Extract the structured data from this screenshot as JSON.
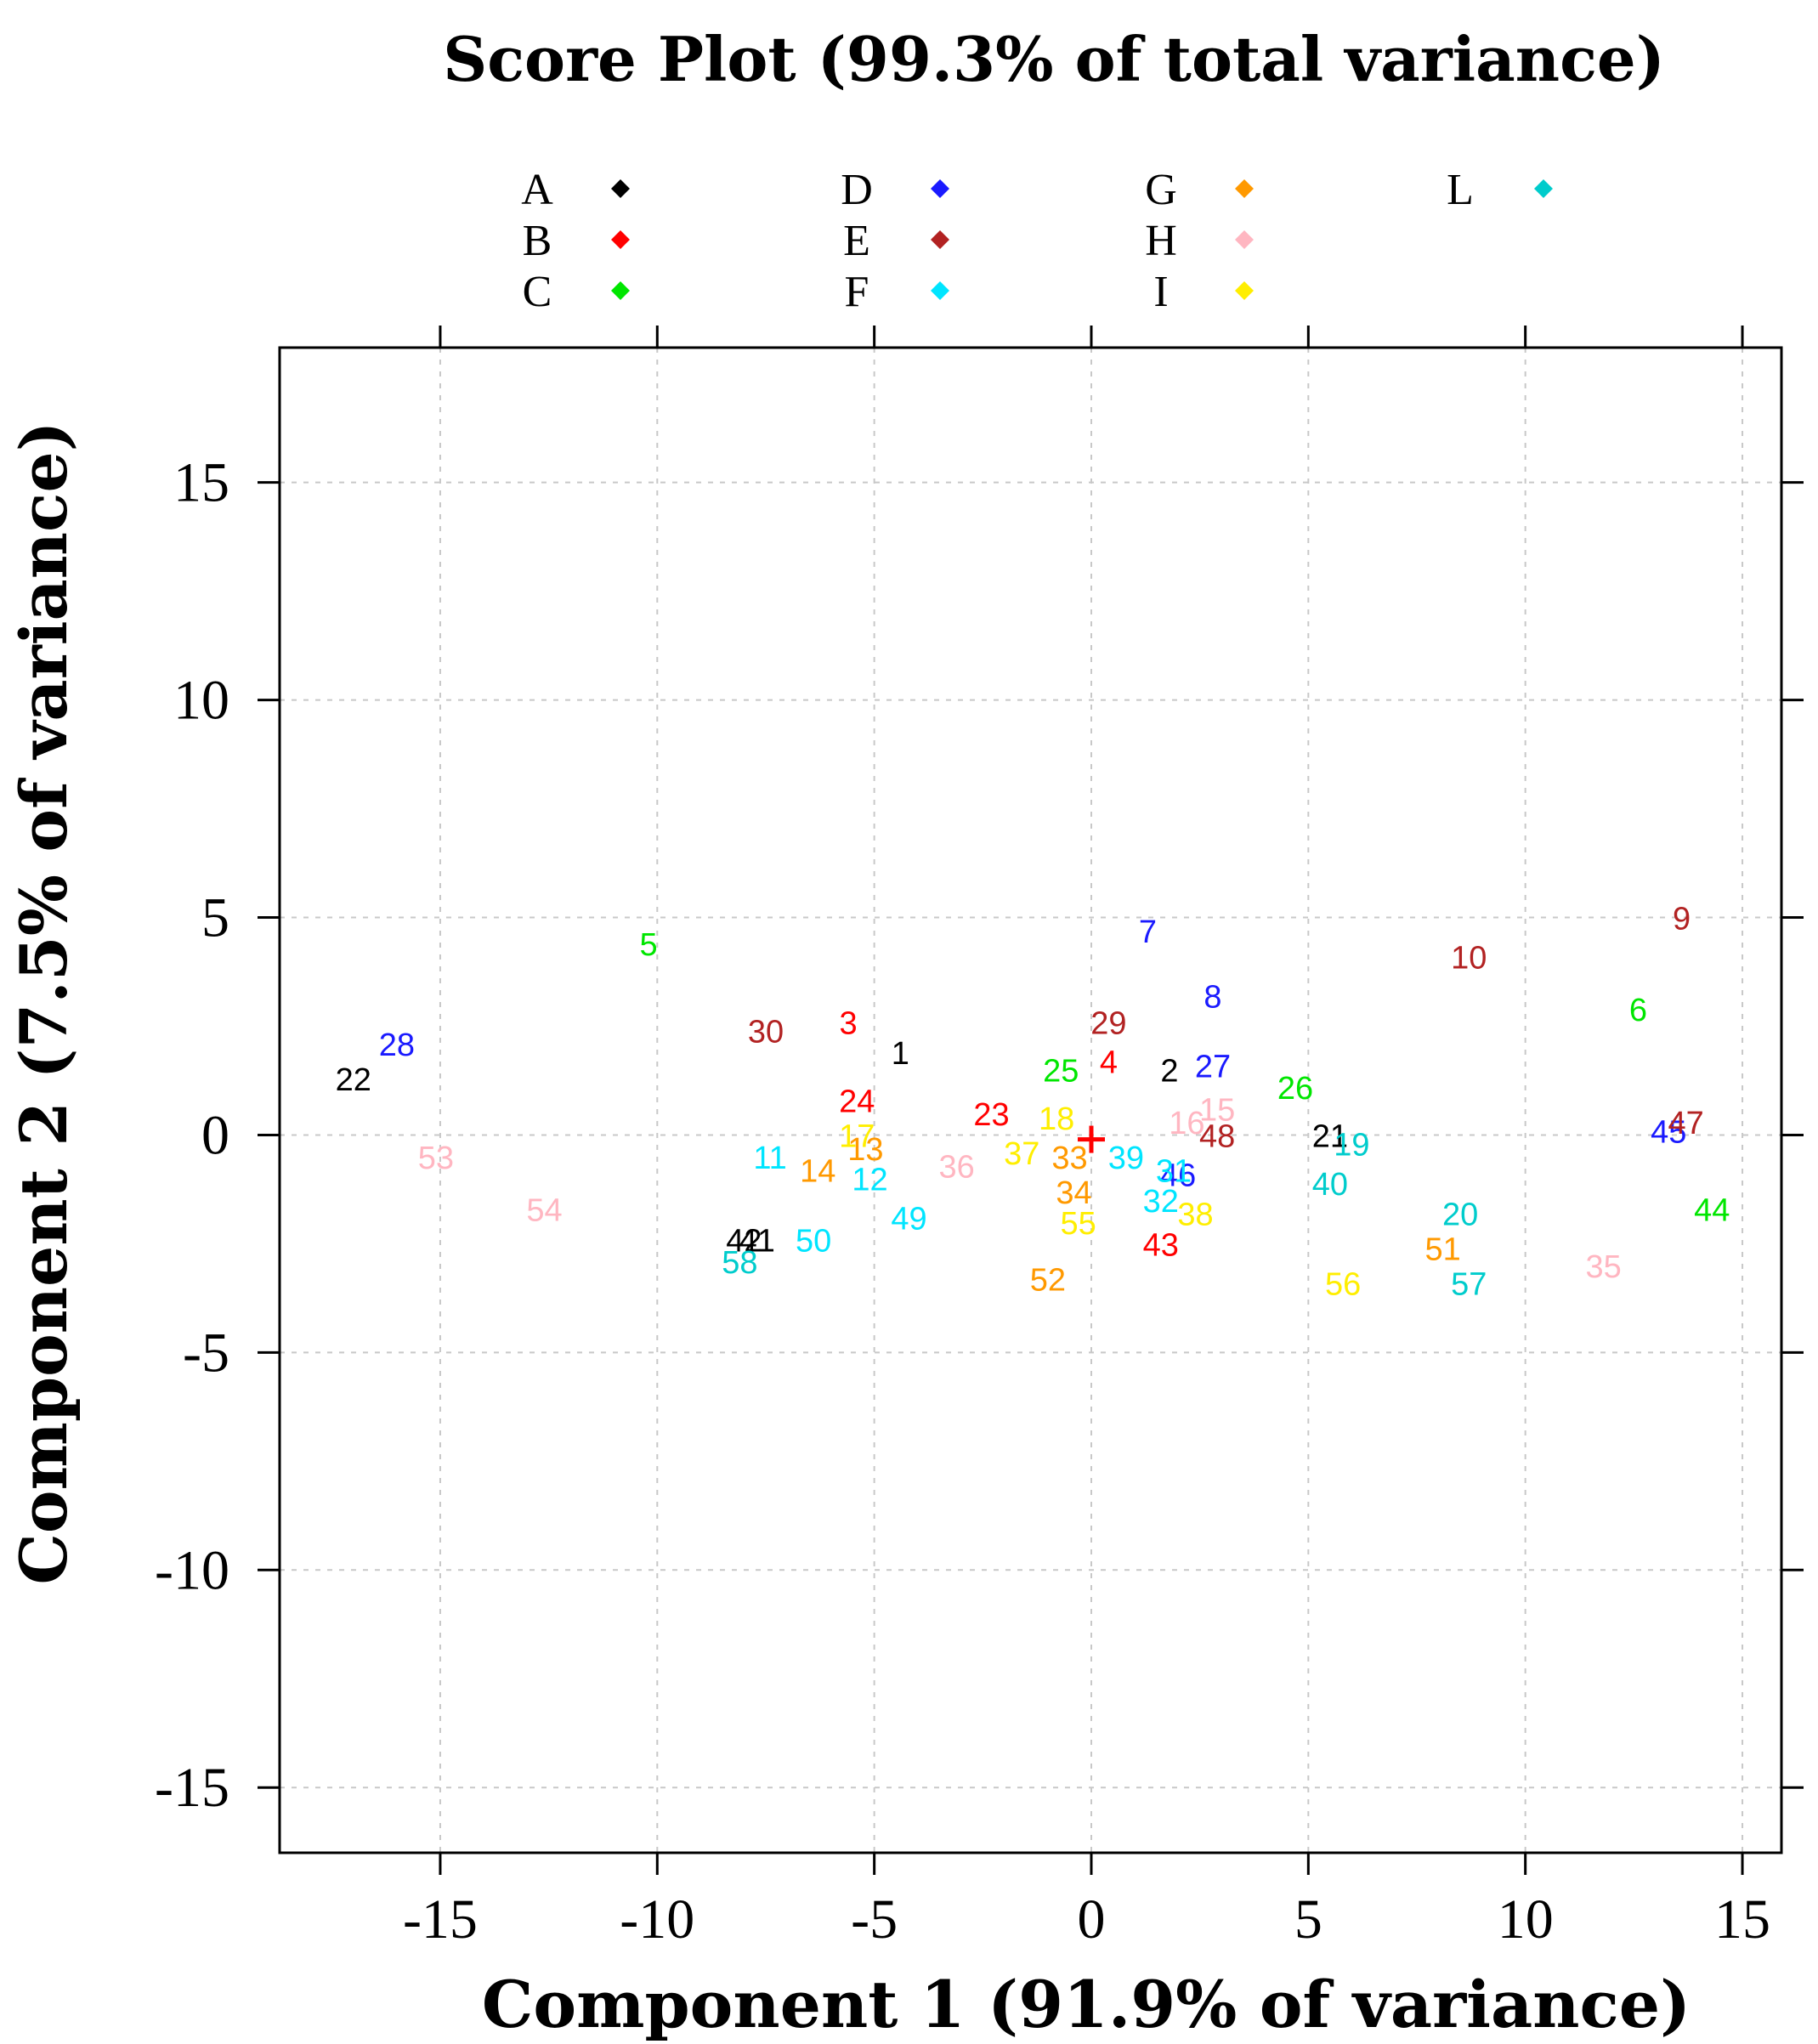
{
  "chart_data": {
    "type": "scatter",
    "title": "Score Plot (99.3% of total variance)",
    "xlabel": "Component 1 (91.9% of variance)",
    "ylabel": "Component 2 (7.5% of variance)",
    "xlim": [
      -18.7,
      15.9
    ],
    "ylim": [
      -16.5,
      18.1
    ],
    "xticks": [
      -15,
      -10,
      -5,
      0,
      5,
      10,
      15
    ],
    "yticks": [
      -15,
      -10,
      -5,
      0,
      5,
      10,
      15
    ],
    "xtick_labels": [
      "-15",
      "-10",
      "-5",
      "0",
      "5",
      "10",
      "15"
    ],
    "ytick_labels": [
      "-15",
      "-10",
      "-5",
      "0",
      "5",
      "10",
      "15"
    ],
    "grid": true,
    "legend_position": "top",
    "groups": [
      {
        "name": "A",
        "color": "#000000"
      },
      {
        "name": "B",
        "color": "#ff0000"
      },
      {
        "name": "C",
        "color": "#00e600"
      },
      {
        "name": "D",
        "color": "#1a1aff"
      },
      {
        "name": "E",
        "color": "#b22222"
      },
      {
        "name": "F",
        "color": "#00e5ff"
      },
      {
        "name": "G",
        "color": "#ff9900"
      },
      {
        "name": "H",
        "color": "#ffb6c1"
      },
      {
        "name": "I",
        "color": "#ffee00"
      },
      {
        "name": "L",
        "color": "#00cccc"
      }
    ],
    "center_marker": {
      "x": 0,
      "y": -0.1,
      "color": "#ff0000",
      "symbol": "+"
    },
    "points": [
      {
        "label": "1",
        "x": -4.4,
        "y": 1.9,
        "group": "A"
      },
      {
        "label": "2",
        "x": 1.8,
        "y": 1.5,
        "group": "A"
      },
      {
        "label": "21",
        "x": 5.5,
        "y": 0.0,
        "group": "A"
      },
      {
        "label": "22",
        "x": -17.0,
        "y": 1.3,
        "group": "A"
      },
      {
        "label": "41",
        "x": -7.7,
        "y": -2.4,
        "group": "A"
      },
      {
        "label": "42",
        "x": -8.0,
        "y": -2.4,
        "group": "A"
      },
      {
        "label": "3",
        "x": -5.6,
        "y": 2.6,
        "group": "B"
      },
      {
        "label": "4",
        "x": 0.4,
        "y": 1.7,
        "group": "B"
      },
      {
        "label": "23",
        "x": -2.3,
        "y": 0.5,
        "group": "B"
      },
      {
        "label": "24",
        "x": -5.4,
        "y": 0.8,
        "group": "B"
      },
      {
        "label": "43",
        "x": 1.6,
        "y": -2.5,
        "group": "B"
      },
      {
        "label": "5",
        "x": -10.2,
        "y": 4.4,
        "group": "C"
      },
      {
        "label": "6",
        "x": 12.6,
        "y": 2.9,
        "group": "C"
      },
      {
        "label": "25",
        "x": -0.7,
        "y": 1.5,
        "group": "C"
      },
      {
        "label": "26",
        "x": 4.7,
        "y": 1.1,
        "group": "C"
      },
      {
        "label": "44",
        "x": 14.3,
        "y": -1.7,
        "group": "C"
      },
      {
        "label": "7",
        "x": 1.3,
        "y": 4.7,
        "group": "D"
      },
      {
        "label": "8",
        "x": 2.8,
        "y": 3.2,
        "group": "D"
      },
      {
        "label": "27",
        "x": 2.8,
        "y": 1.6,
        "group": "D"
      },
      {
        "label": "28",
        "x": -16.0,
        "y": 2.1,
        "group": "D"
      },
      {
        "label": "45",
        "x": 13.3,
        "y": 0.1,
        "group": "D"
      },
      {
        "label": "46",
        "x": 2.0,
        "y": -0.9,
        "group": "D"
      },
      {
        "label": "9",
        "x": 13.6,
        "y": 5.0,
        "group": "E"
      },
      {
        "label": "10",
        "x": 8.7,
        "y": 4.1,
        "group": "E"
      },
      {
        "label": "29",
        "x": 0.4,
        "y": 2.6,
        "group": "E"
      },
      {
        "label": "30",
        "x": -7.5,
        "y": 2.4,
        "group": "E"
      },
      {
        "label": "47",
        "x": 13.7,
        "y": 0.3,
        "group": "E"
      },
      {
        "label": "48",
        "x": 2.9,
        "y": 0.0,
        "group": "E"
      },
      {
        "label": "11",
        "x": -7.4,
        "y": -0.5,
        "group": "F"
      },
      {
        "label": "12",
        "x": -5.1,
        "y": -1.0,
        "group": "F"
      },
      {
        "label": "31",
        "x": 1.9,
        "y": -0.8,
        "group": "F"
      },
      {
        "label": "32",
        "x": 1.6,
        "y": -1.5,
        "group": "F"
      },
      {
        "label": "39",
        "x": 0.8,
        "y": -0.5,
        "group": "F"
      },
      {
        "label": "49",
        "x": -4.2,
        "y": -1.9,
        "group": "F"
      },
      {
        "label": "50",
        "x": -6.4,
        "y": -2.4,
        "group": "F"
      },
      {
        "label": "13",
        "x": -5.2,
        "y": -0.3,
        "group": "G"
      },
      {
        "label": "14",
        "x": -6.3,
        "y": -0.8,
        "group": "G"
      },
      {
        "label": "33",
        "x": -0.5,
        "y": -0.5,
        "group": "G"
      },
      {
        "label": "34",
        "x": -0.4,
        "y": -1.3,
        "group": "G"
      },
      {
        "label": "51",
        "x": 8.1,
        "y": -2.6,
        "group": "G"
      },
      {
        "label": "52",
        "x": -1.0,
        "y": -3.3,
        "group": "G"
      },
      {
        "label": "15",
        "x": 2.9,
        "y": 0.6,
        "group": "H"
      },
      {
        "label": "16",
        "x": 2.2,
        "y": 0.3,
        "group": "H"
      },
      {
        "label": "35",
        "x": 11.8,
        "y": -3.0,
        "group": "H"
      },
      {
        "label": "36",
        "x": -3.1,
        "y": -0.7,
        "group": "H"
      },
      {
        "label": "53",
        "x": -15.1,
        "y": -0.5,
        "group": "H"
      },
      {
        "label": "54",
        "x": -12.6,
        "y": -1.7,
        "group": "H"
      },
      {
        "label": "17",
        "x": -5.4,
        "y": 0.0,
        "group": "I"
      },
      {
        "label": "18",
        "x": -0.8,
        "y": 0.4,
        "group": "I"
      },
      {
        "label": "37",
        "x": -1.6,
        "y": -0.4,
        "group": "I"
      },
      {
        "label": "38",
        "x": 2.4,
        "y": -1.8,
        "group": "I"
      },
      {
        "label": "55",
        "x": -0.3,
        "y": -2.0,
        "group": "I"
      },
      {
        "label": "56",
        "x": 5.8,
        "y": -3.4,
        "group": "I"
      },
      {
        "label": "19",
        "x": 6.0,
        "y": -0.2,
        "group": "L"
      },
      {
        "label": "20",
        "x": 8.5,
        "y": -1.8,
        "group": "L"
      },
      {
        "label": "40",
        "x": 5.5,
        "y": -1.1,
        "group": "L"
      },
      {
        "label": "57",
        "x": 8.7,
        "y": -3.4,
        "group": "L"
      },
      {
        "label": "58",
        "x": -8.1,
        "y": -2.9,
        "group": "L"
      }
    ]
  }
}
